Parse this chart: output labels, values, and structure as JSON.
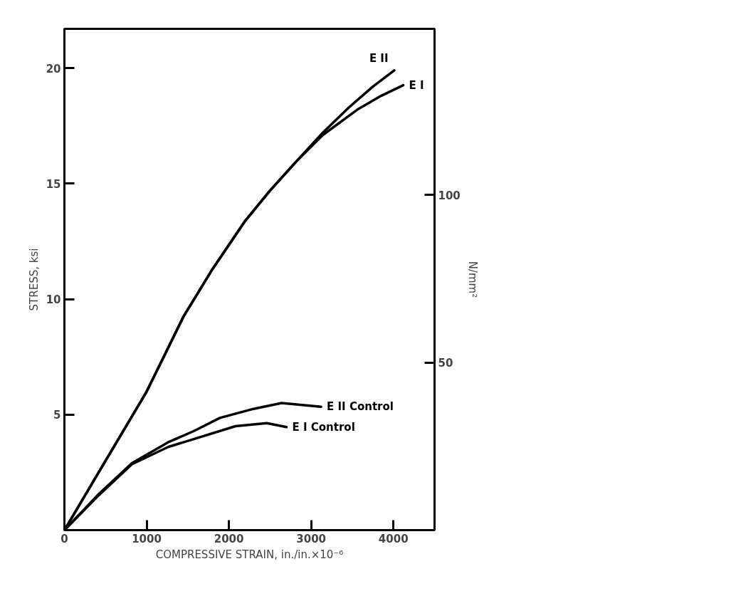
{
  "chart_data": {
    "type": "line",
    "xlabel": "COMPRESSIVE STRAIN, in./in.×10⁻⁶",
    "ylabel": "STRESS, ksi",
    "y2label": "N/mm²",
    "xlim": [
      0,
      4500
    ],
    "xticks": [
      0,
      1000,
      2000,
      3000,
      4000
    ],
    "ylim": [
      0,
      21.7
    ],
    "yticks": [
      5,
      10,
      15,
      20
    ],
    "y2lim": [
      0,
      149.6
    ],
    "y2ticks": [
      50,
      100
    ],
    "grid": false,
    "legend": false,
    "marker": "none",
    "line_style": "solid",
    "series": [
      {
        "name": "E II",
        "color": "#000000",
        "x": [
          0,
          500,
          1000,
          1450,
          1800,
          2200,
          2500,
          2830,
          3140,
          3460,
          3750,
          4010
        ],
        "values": [
          0,
          3.0,
          6.0,
          9.26,
          11.3,
          13.4,
          14.7,
          16.0,
          17.2,
          18.3,
          19.2,
          19.9
        ]
      },
      {
        "name": "E I",
        "color": "#000000",
        "x": [
          0,
          500,
          1000,
          1450,
          1800,
          2200,
          2500,
          2830,
          3140,
          3560,
          3850,
          4120
        ],
        "values": [
          0,
          3.0,
          6.0,
          9.26,
          11.3,
          13.4,
          14.7,
          16.0,
          17.1,
          18.2,
          18.8,
          19.26
        ]
      },
      {
        "name": "E II Control",
        "color": "#000000",
        "x": [
          0,
          400,
          820,
          1260,
          1580,
          1890,
          2300,
          2640,
          3120
        ],
        "values": [
          0,
          1.5,
          2.9,
          3.8,
          4.3,
          4.86,
          5.25,
          5.5,
          5.34
        ]
      },
      {
        "name": "E I Control",
        "color": "#000000",
        "x": [
          0,
          400,
          820,
          1260,
          1580,
          2080,
          2460,
          2700
        ],
        "values": [
          0,
          1.45,
          2.85,
          3.6,
          3.95,
          4.5,
          4.63,
          4.46
        ]
      }
    ]
  }
}
